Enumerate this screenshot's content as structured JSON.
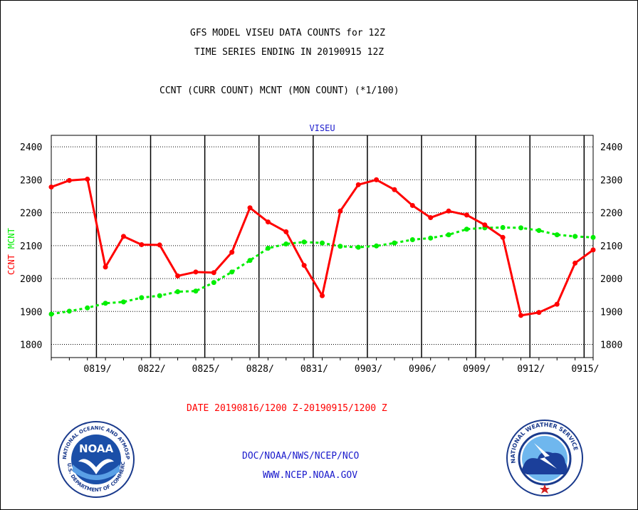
{
  "header": {
    "title_line1": "GFS MODEL VISEU DATA COUNTS for 12Z",
    "title_line2": "TIME SERIES ENDING IN 20190915 12Z",
    "subtitle": "CCNT (CURR COUNT) MCNT (MON COUNT) (*1/100)"
  },
  "footer": {
    "date_range": "DATE 20190816/1200 Z-20190915/1200 Z",
    "agency": "DOC/NOAA/NWS/NCEP/NCO",
    "website": "WWW.NCEP.NOAA.GOV"
  },
  "logos": {
    "noaa": {
      "center_text": "NOAA",
      "ring_text_top": "NATIONAL OCEANIC AND ATMOSPHERIC ADMINISTRATION",
      "ring_text_bottom": "U.S. DEPARTMENT OF COMMERCE"
    },
    "nws": {
      "ring_text": "NATIONAL WEATHER SERVICE"
    }
  },
  "colors": {
    "ccnt": "#ff0000",
    "mcnt": "#00ee00",
    "footer_date": "#ff0000",
    "footer_links": "#1a1acc",
    "plot_label": "#1a1acc"
  },
  "chart_data": {
    "type": "line",
    "title": "VISEU",
    "ylabel_parts": [
      "CCNT",
      "MCNT"
    ],
    "ylim": [
      1760,
      2435
    ],
    "yticks": [
      1800,
      1900,
      2000,
      2100,
      2200,
      2300,
      2400
    ],
    "ytick_labels": [
      "1800",
      "1900",
      "2000",
      "2100",
      "2200",
      "2300",
      "2400"
    ],
    "xlim": [
      0,
      30
    ],
    "x_ticks": [
      {
        "x": 2.5,
        "label": "0819/"
      },
      {
        "x": 5.5,
        "label": "0822/"
      },
      {
        "x": 8.5,
        "label": "0825/"
      },
      {
        "x": 11.5,
        "label": "0828/"
      },
      {
        "x": 14.5,
        "label": "0831/"
      },
      {
        "x": 17.5,
        "label": "0903/"
      },
      {
        "x": 20.5,
        "label": "0906/"
      },
      {
        "x": 23.5,
        "label": "0909/"
      },
      {
        "x": 26.5,
        "label": "0912/"
      },
      {
        "x": 29.5,
        "label": "0915/"
      }
    ],
    "grid": true,
    "series": [
      {
        "name": "CCNT",
        "style": "solid",
        "values": [
          2278,
          2298,
          2302,
          2035,
          2128,
          2103,
          2102,
          2008,
          2020,
          2018,
          2080,
          2215,
          2172,
          2142,
          2040,
          1948,
          2205,
          2285,
          2300,
          2270,
          2222,
          2185,
          2205,
          2193,
          2163,
          2125,
          1888,
          1897,
          1922,
          2047,
          2087
        ]
      },
      {
        "name": "MCNT",
        "style": "dotted",
        "values": [
          1892,
          1901,
          1911,
          1925,
          1929,
          1942,
          1948,
          1960,
          1962,
          1988,
          2020,
          2055,
          2092,
          2105,
          2111,
          2108,
          2098,
          2095,
          2099,
          2108,
          2118,
          2123,
          2133,
          2150,
          2154,
          2155,
          2154,
          2146,
          2133,
          2128,
          2125
        ]
      }
    ]
  }
}
